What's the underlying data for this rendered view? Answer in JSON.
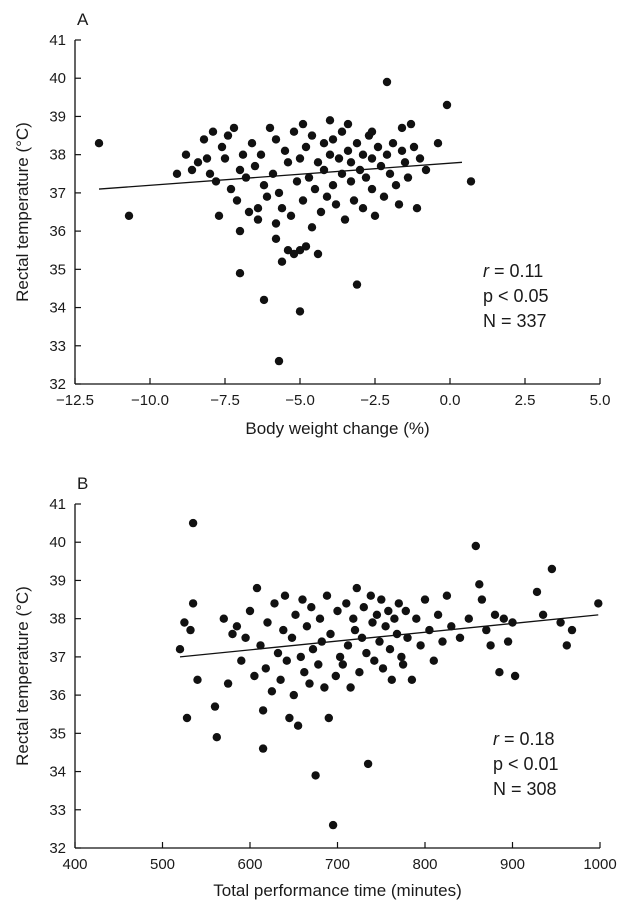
{
  "chart_data": [
    {
      "type": "scatter",
      "panel_label": "A",
      "xlabel": "Body weight change (%)",
      "ylabel": "Rectal temperature (°C)",
      "xlim": [
        -12.5,
        5.0
      ],
      "ylim": [
        32,
        41
      ],
      "xticks": [
        -12.5,
        -10.0,
        -7.5,
        -5.0,
        -2.5,
        0.0,
        2.5,
        5.0
      ],
      "xtick_labels": [
        "−12.5",
        "−10.0",
        "−7.5",
        "−5.0",
        "−2.5",
        "0.0",
        "2.5",
        "5.0"
      ],
      "yticks": [
        32,
        33,
        34,
        35,
        36,
        37,
        38,
        39,
        40,
        41
      ],
      "ytick_labels": [
        "32",
        "33",
        "34",
        "35",
        "36",
        "37",
        "38",
        "39",
        "40",
        "41"
      ],
      "regression_line": {
        "x": [
          -11.7,
          0.4
        ],
        "y": [
          37.1,
          37.8
        ]
      },
      "stats": {
        "r_symbol": "r",
        "r_text": " = 0.11",
        "p_text": "p < 0.05",
        "n_text": "N = 337"
      },
      "grid": false,
      "points": [
        [
          -11.7,
          38.3
        ],
        [
          -10.7,
          36.4
        ],
        [
          -9.1,
          37.5
        ],
        [
          -8.8,
          38.0
        ],
        [
          -8.6,
          37.6
        ],
        [
          -8.4,
          37.8
        ],
        [
          -8.2,
          38.4
        ],
        [
          -8.1,
          37.9
        ],
        [
          -8.0,
          37.5
        ],
        [
          -7.9,
          38.6
        ],
        [
          -7.8,
          37.3
        ],
        [
          -7.7,
          36.4
        ],
        [
          -7.6,
          38.2
        ],
        [
          -7.5,
          37.9
        ],
        [
          -7.4,
          38.5
        ],
        [
          -7.3,
          37.1
        ],
        [
          -7.2,
          38.7
        ],
        [
          -7.1,
          36.8
        ],
        [
          -7.0,
          37.6
        ],
        [
          -7.0,
          36.0
        ],
        [
          -6.9,
          38.0
        ],
        [
          -6.8,
          37.4
        ],
        [
          -6.7,
          36.5
        ],
        [
          -6.6,
          38.3
        ],
        [
          -6.5,
          37.7
        ],
        [
          -6.4,
          36.3
        ],
        [
          -6.3,
          38.0
        ],
        [
          -6.2,
          37.2
        ],
        [
          -6.1,
          36.9
        ],
        [
          -6.0,
          38.7
        ],
        [
          -5.9,
          37.5
        ],
        [
          -5.8,
          36.2
        ],
        [
          -5.8,
          38.4
        ],
        [
          -5.7,
          37.0
        ],
        [
          -5.6,
          36.6
        ],
        [
          -5.5,
          38.1
        ],
        [
          -5.4,
          35.5
        ],
        [
          -5.4,
          37.8
        ],
        [
          -5.3,
          36.4
        ],
        [
          -5.2,
          38.6
        ],
        [
          -5.1,
          37.3
        ],
        [
          -5.0,
          35.5
        ],
        [
          -5.0,
          37.9
        ],
        [
          -4.9,
          36.8
        ],
        [
          -4.8,
          38.2
        ],
        [
          -4.7,
          37.4
        ],
        [
          -4.6,
          36.1
        ],
        [
          -4.6,
          38.5
        ],
        [
          -4.5,
          37.1
        ],
        [
          -4.4,
          37.8
        ],
        [
          -4.3,
          36.5
        ],
        [
          -4.2,
          38.3
        ],
        [
          -4.2,
          37.6
        ],
        [
          -4.1,
          36.9
        ],
        [
          -4.0,
          38.0
        ],
        [
          -3.9,
          37.2
        ],
        [
          -3.9,
          38.4
        ],
        [
          -3.8,
          36.7
        ],
        [
          -3.7,
          37.9
        ],
        [
          -3.6,
          38.6
        ],
        [
          -3.6,
          37.5
        ],
        [
          -3.5,
          36.3
        ],
        [
          -3.4,
          38.1
        ],
        [
          -3.3,
          37.3
        ],
        [
          -3.3,
          37.8
        ],
        [
          -3.2,
          36.8
        ],
        [
          -3.1,
          38.3
        ],
        [
          -3.0,
          37.6
        ],
        [
          -2.9,
          36.6
        ],
        [
          -2.9,
          38.0
        ],
        [
          -2.8,
          37.4
        ],
        [
          -2.7,
          38.5
        ],
        [
          -2.6,
          37.1
        ],
        [
          -2.6,
          37.9
        ],
        [
          -2.5,
          36.4
        ],
        [
          -2.4,
          38.2
        ],
        [
          -2.3,
          37.7
        ],
        [
          -2.2,
          36.9
        ],
        [
          -2.1,
          38.0
        ],
        [
          -2.0,
          37.5
        ],
        [
          -1.9,
          38.3
        ],
        [
          -1.8,
          37.2
        ],
        [
          -1.7,
          36.7
        ],
        [
          -1.6,
          38.1
        ],
        [
          -1.5,
          37.8
        ],
        [
          -1.4,
          37.4
        ],
        [
          -1.3,
          38.8
        ],
        [
          -1.2,
          38.2
        ],
        [
          -1.1,
          36.6
        ],
        [
          -1.0,
          37.9
        ],
        [
          -0.8,
          37.6
        ],
        [
          -0.4,
          38.3
        ],
        [
          -0.1,
          39.3
        ],
        [
          0.7,
          37.3
        ],
        [
          -6.2,
          34.2
        ],
        [
          -5.7,
          32.6
        ],
        [
          -5.0,
          33.9
        ],
        [
          -3.1,
          34.6
        ],
        [
          -7.0,
          34.9
        ],
        [
          -5.6,
          35.2
        ],
        [
          -5.2,
          35.4
        ],
        [
          -4.8,
          35.6
        ],
        [
          -4.4,
          35.4
        ],
        [
          -5.8,
          35.8
        ],
        [
          -2.1,
          39.9
        ],
        [
          -6.4,
          36.6
        ],
        [
          -4.9,
          38.8
        ],
        [
          -4.0,
          38.9
        ],
        [
          -3.4,
          38.8
        ],
        [
          -2.6,
          38.6
        ],
        [
          -1.6,
          38.7
        ]
      ]
    },
    {
      "type": "scatter",
      "panel_label": "B",
      "xlabel": "Total performance time (minutes)",
      "ylabel": "Rectal temperature (°C)",
      "xlim": [
        400,
        1000
      ],
      "ylim": [
        32,
        41
      ],
      "xticks": [
        400,
        500,
        600,
        700,
        800,
        900,
        1000
      ],
      "xtick_labels": [
        "400",
        "500",
        "600",
        "700",
        "800",
        "900",
        "1000"
      ],
      "yticks": [
        32,
        33,
        34,
        35,
        36,
        37,
        38,
        39,
        40,
        41
      ],
      "ytick_labels": [
        "32",
        "33",
        "34",
        "35",
        "36",
        "37",
        "38",
        "39",
        "40",
        "41"
      ],
      "regression_line": {
        "x": [
          520,
          998
        ],
        "y": [
          37.0,
          38.1
        ]
      },
      "stats": {
        "r_symbol": "r",
        "r_text": " = 0.18",
        "p_text": "p < 0.01",
        "n_text": "N = 308"
      },
      "grid": false,
      "points": [
        [
          520,
          37.2
        ],
        [
          525,
          37.9
        ],
        [
          528,
          35.4
        ],
        [
          532,
          37.7
        ],
        [
          535,
          40.5
        ],
        [
          535,
          38.4
        ],
        [
          540,
          36.4
        ],
        [
          560,
          35.7
        ],
        [
          562,
          34.9
        ],
        [
          570,
          38.0
        ],
        [
          575,
          36.3
        ],
        [
          580,
          37.6
        ],
        [
          585,
          37.8
        ],
        [
          590,
          36.9
        ],
        [
          595,
          37.5
        ],
        [
          600,
          38.2
        ],
        [
          605,
          36.5
        ],
        [
          608,
          38.8
        ],
        [
          612,
          37.3
        ],
        [
          615,
          34.6
        ],
        [
          615,
          35.6
        ],
        [
          618,
          36.7
        ],
        [
          620,
          37.9
        ],
        [
          625,
          36.1
        ],
        [
          628,
          38.4
        ],
        [
          632,
          37.1
        ],
        [
          635,
          36.4
        ],
        [
          638,
          37.7
        ],
        [
          640,
          38.6
        ],
        [
          642,
          36.9
        ],
        [
          645,
          35.4
        ],
        [
          648,
          37.5
        ],
        [
          650,
          36.0
        ],
        [
          652,
          38.1
        ],
        [
          655,
          35.2
        ],
        [
          658,
          37.0
        ],
        [
          660,
          38.5
        ],
        [
          662,
          36.6
        ],
        [
          665,
          37.8
        ],
        [
          668,
          36.3
        ],
        [
          670,
          38.3
        ],
        [
          672,
          37.2
        ],
        [
          675,
          33.9
        ],
        [
          678,
          36.8
        ],
        [
          680,
          38.0
        ],
        [
          682,
          37.4
        ],
        [
          685,
          36.2
        ],
        [
          688,
          38.6
        ],
        [
          690,
          35.4
        ],
        [
          692,
          37.6
        ],
        [
          695,
          32.6
        ],
        [
          698,
          36.5
        ],
        [
          700,
          38.2
        ],
        [
          703,
          37.0
        ],
        [
          706,
          36.8
        ],
        [
          710,
          38.4
        ],
        [
          712,
          37.3
        ],
        [
          715,
          36.2
        ],
        [
          718,
          38.0
        ],
        [
          720,
          37.7
        ],
        [
          722,
          38.8
        ],
        [
          725,
          36.6
        ],
        [
          728,
          37.5
        ],
        [
          730,
          38.3
        ],
        [
          733,
          37.1
        ],
        [
          735,
          34.2
        ],
        [
          738,
          38.6
        ],
        [
          740,
          37.9
        ],
        [
          742,
          36.9
        ],
        [
          745,
          38.1
        ],
        [
          748,
          37.4
        ],
        [
          750,
          38.5
        ],
        [
          752,
          36.7
        ],
        [
          755,
          37.8
        ],
        [
          758,
          38.2
        ],
        [
          760,
          37.2
        ],
        [
          762,
          36.4
        ],
        [
          765,
          38.0
        ],
        [
          768,
          37.6
        ],
        [
          770,
          38.4
        ],
        [
          773,
          37.0
        ],
        [
          775,
          36.8
        ],
        [
          778,
          38.2
        ],
        [
          780,
          37.5
        ],
        [
          785,
          36.4
        ],
        [
          790,
          38.0
        ],
        [
          795,
          37.3
        ],
        [
          800,
          38.5
        ],
        [
          805,
          37.7
        ],
        [
          810,
          36.9
        ],
        [
          815,
          38.1
        ],
        [
          820,
          37.4
        ],
        [
          825,
          38.6
        ],
        [
          830,
          37.8
        ],
        [
          840,
          37.5
        ],
        [
          850,
          38.0
        ],
        [
          858,
          39.9
        ],
        [
          862,
          38.9
        ],
        [
          865,
          38.5
        ],
        [
          870,
          37.7
        ],
        [
          875,
          37.3
        ],
        [
          880,
          38.1
        ],
        [
          885,
          36.6
        ],
        [
          890,
          38.0
        ],
        [
          895,
          37.4
        ],
        [
          900,
          37.9
        ],
        [
          903,
          36.5
        ],
        [
          928,
          38.7
        ],
        [
          935,
          38.1
        ],
        [
          945,
          39.3
        ],
        [
          955,
          37.9
        ],
        [
          962,
          37.3
        ],
        [
          968,
          37.7
        ],
        [
          998,
          38.4
        ]
      ]
    }
  ]
}
